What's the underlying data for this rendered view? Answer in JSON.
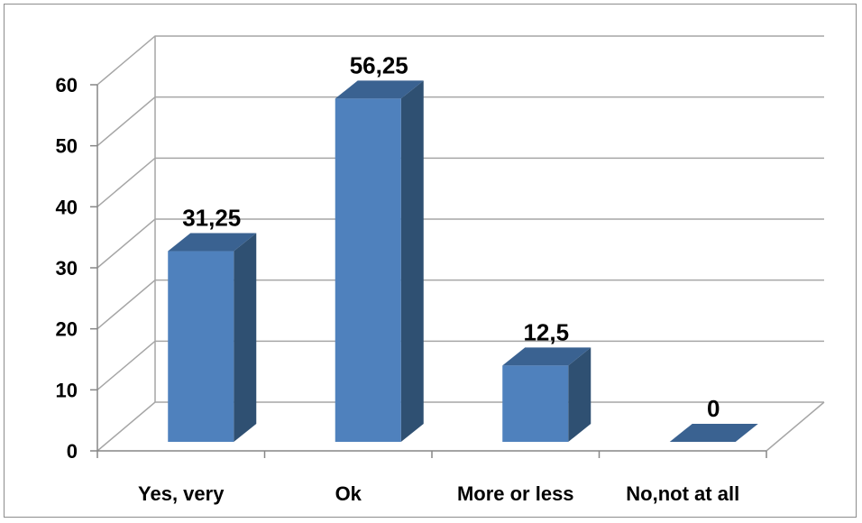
{
  "chart_data": {
    "type": "bar",
    "categories": [
      "Yes, very",
      "Ok",
      "More or less",
      "No,not at all"
    ],
    "values": [
      31.25,
      56.25,
      12.5,
      0
    ],
    "value_labels": [
      "31,25",
      "56,25",
      "12,5",
      "0"
    ],
    "y_ticks": [
      "0",
      "10",
      "20",
      "30",
      "40",
      "50",
      "60"
    ],
    "ylim": [
      0,
      60
    ],
    "grid": true,
    "legend": "none",
    "style": "3d-column",
    "colors": {
      "bar_front": "#4F81BD",
      "bar_side": "#2F5072",
      "bar_top": "#3A6291",
      "gridline": "#A6A6A6",
      "axis": "#868686"
    }
  }
}
